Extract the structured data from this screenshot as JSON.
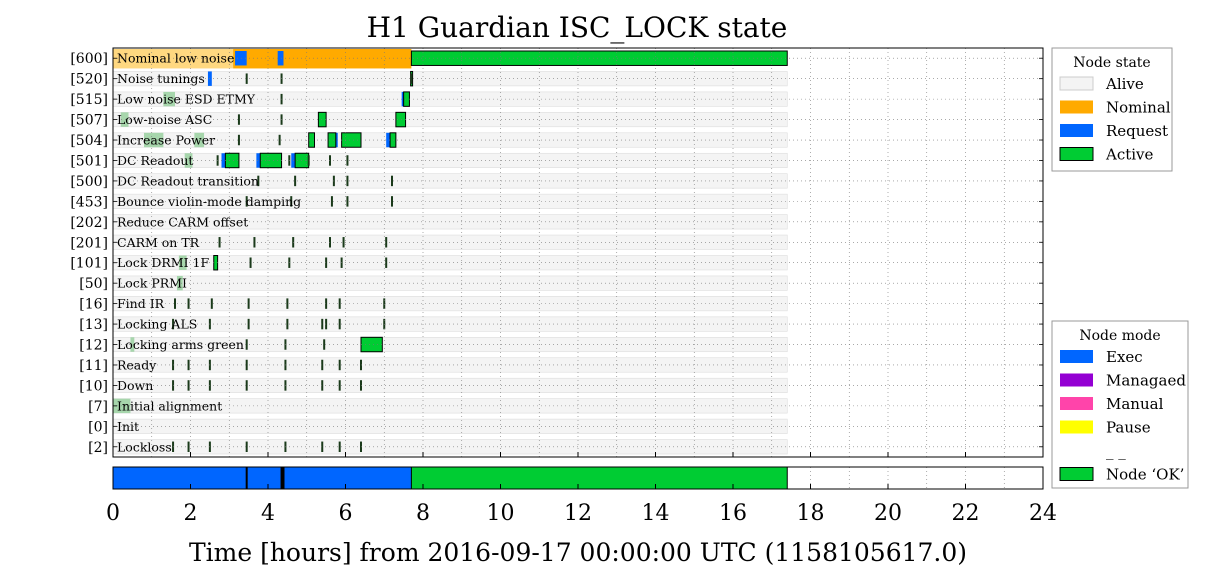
{
  "chart_data": {
    "type": "timeline",
    "title": "H1 Guardian ISC_LOCK state",
    "xlabel": "Time [hours] from 2016-09-17 00:00:00 UTC (1158105617.0)",
    "xlim": [
      0,
      24
    ],
    "x_ticks": [
      "0",
      "2",
      "4",
      "6",
      "8",
      "10",
      "12",
      "14",
      "16",
      "18",
      "20",
      "22",
      "24"
    ],
    "data_end_hours": 17.4,
    "states": [
      {
        "code": "[600]",
        "name": "Nominal low noise"
      },
      {
        "code": "[520]",
        "name": "Noise tunings"
      },
      {
        "code": "[515]",
        "name": "Low noise ESD ETMY"
      },
      {
        "code": "[507]",
        "name": "Low-noise ASC"
      },
      {
        "code": "[504]",
        "name": "Increase Power"
      },
      {
        "code": "[501]",
        "name": "DC Readout"
      },
      {
        "code": "[500]",
        "name": "DC Readout transition"
      },
      {
        "code": "[453]",
        "name": "Bounce violin-mode damping"
      },
      {
        "code": "[202]",
        "name": "Reduce CARM offset"
      },
      {
        "code": "[201]",
        "name": "CARM on TR"
      },
      {
        "code": "[101]",
        "name": "Lock DRMI 1F"
      },
      {
        "code": "[50]",
        "name": "Lock PRMI"
      },
      {
        "code": "[16]",
        "name": "Find IR"
      },
      {
        "code": "[13]",
        "name": "Locking ALS"
      },
      {
        "code": "[12]",
        "name": "Locking arms green"
      },
      {
        "code": "[11]",
        "name": "Ready"
      },
      {
        "code": "[10]",
        "name": "Down"
      },
      {
        "code": "[7]",
        "name": "Initial alignment"
      },
      {
        "code": "[0]",
        "name": "Init"
      },
      {
        "code": "[2]",
        "name": "Lockloss"
      }
    ],
    "nominal_band": [
      {
        "start": 0,
        "end": 3.1,
        "style": "light"
      },
      {
        "start": 3.1,
        "end": 7.7,
        "style": "full"
      }
    ],
    "request_segments": [
      {
        "state": "[600]",
        "start": 3.15,
        "end": 3.45
      },
      {
        "state": "[600]",
        "start": 4.25,
        "end": 4.4
      },
      {
        "state": "[520]",
        "start": 2.45,
        "end": 2.55
      },
      {
        "state": "[515]",
        "start": 7.45,
        "end": 7.6
      },
      {
        "state": "[504]",
        "start": 7.05,
        "end": 7.25
      },
      {
        "state": "[504]",
        "start": 5.65,
        "end": 5.8
      },
      {
        "state": "[501]",
        "start": 2.8,
        "end": 3.15
      },
      {
        "state": "[501]",
        "start": 3.7,
        "end": 4.2
      },
      {
        "state": "[501]",
        "start": 4.6,
        "end": 5.0
      }
    ],
    "active_segments": [
      {
        "state": "[600]",
        "start": 7.7,
        "end": 17.4
      },
      {
        "state": "[520]",
        "start": 7.68,
        "end": 7.72
      },
      {
        "state": "[515]",
        "start": 7.5,
        "end": 7.65
      },
      {
        "state": "[507]",
        "start": 5.3,
        "end": 5.5
      },
      {
        "state": "[507]",
        "start": 7.3,
        "end": 7.55
      },
      {
        "state": "[504]",
        "start": 5.05,
        "end": 5.2
      },
      {
        "state": "[504]",
        "start": 5.55,
        "end": 5.75
      },
      {
        "state": "[504]",
        "start": 5.9,
        "end": 6.4
      },
      {
        "state": "[504]",
        "start": 7.15,
        "end": 7.3
      },
      {
        "state": "[501]",
        "start": 2.9,
        "end": 3.25
      },
      {
        "state": "[501]",
        "start": 3.8,
        "end": 4.35
      },
      {
        "state": "[501]",
        "start": 4.7,
        "end": 5.05
      },
      {
        "state": "[12]",
        "start": 6.4,
        "end": 6.95
      },
      {
        "state": "[101]",
        "start": 2.6,
        "end": 2.7
      }
    ],
    "alive_segments": [
      {
        "state": "[507]",
        "start": 0.2,
        "end": 0.4
      },
      {
        "state": "[504]",
        "start": 0.8,
        "end": 1.3
      },
      {
        "state": "[504]",
        "start": 2.1,
        "end": 2.35
      },
      {
        "state": "[515]",
        "start": 1.3,
        "end": 1.6
      },
      {
        "state": "[501]",
        "start": 1.85,
        "end": 2.05
      },
      {
        "state": "[7]",
        "start": 0.0,
        "end": 0.45
      },
      {
        "state": "[12]",
        "start": 0.45,
        "end": 0.55
      },
      {
        "state": "[50]",
        "start": 1.65,
        "end": 1.8
      },
      {
        "state": "[101]",
        "start": 1.7,
        "end": 1.9
      }
    ],
    "ticks": [
      {
        "state": "[520]",
        "x": [
          3.45,
          4.35,
          7.7
        ]
      },
      {
        "state": "[515]",
        "x": [
          4.35
        ]
      },
      {
        "state": "[507]",
        "x": [
          3.25,
          4.35
        ]
      },
      {
        "state": "[504]",
        "x": [
          3.25,
          4.3
        ]
      },
      {
        "state": "[501]",
        "x": [
          2.7,
          4.55,
          5.05,
          5.6,
          6.05
        ]
      },
      {
        "state": "[500]",
        "x": [
          3.75,
          4.7,
          5.7,
          6.05,
          7.2
        ]
      },
      {
        "state": "[453]",
        "x": [
          3.45,
          4.6,
          5.65,
          6.05,
          7.2
        ]
      },
      {
        "state": "[201]",
        "x": [
          2.75,
          3.65,
          4.65,
          5.6,
          5.95,
          7.05
        ]
      },
      {
        "state": "[101]",
        "x": [
          3.55,
          4.55,
          5.5,
          5.9,
          7.05
        ]
      },
      {
        "state": "[16]",
        "x": [
          1.6,
          1.95,
          2.55,
          3.5,
          4.5,
          5.5,
          5.85,
          7.0
        ]
      },
      {
        "state": "[13]",
        "x": [
          1.55,
          2.5,
          3.5,
          4.5,
          5.4,
          5.5,
          5.85,
          7.0
        ]
      },
      {
        "state": "[12]",
        "x": [
          3.45,
          4.45,
          5.45
        ]
      },
      {
        "state": "[11]",
        "x": [
          1.55,
          1.95,
          2.5,
          3.45,
          4.45,
          5.4,
          5.85,
          6.4
        ]
      },
      {
        "state": "[10]",
        "x": [
          1.55,
          1.95,
          2.5,
          3.45,
          4.45,
          5.4,
          5.85,
          6.4
        ]
      },
      {
        "state": "[2]",
        "x": [
          1.55,
          1.95,
          2.5,
          3.45,
          4.45,
          5.4,
          5.85,
          6.4
        ]
      }
    ],
    "mode_bar": [
      {
        "start": 0,
        "end": 7.7,
        "mode": "Exec"
      },
      {
        "start": 7.7,
        "end": 17.4,
        "mode": "Node OK"
      }
    ],
    "mode_bar_ticks": [
      3.45,
      4.35,
      4.4
    ],
    "colors": {
      "alive": "#f4f4f4",
      "alive_light": "#9fd3a4",
      "nominal": "#ffaa00",
      "nominal_light": "#ffd880",
      "request": "#0066ff",
      "request_light": "#9dbdf3",
      "active": "#00cc33",
      "exec": "#0066ff",
      "managed": "#9400d3",
      "manual": "#ff44aa",
      "pause": "#ffff00",
      "node_ok": "#00cc33"
    },
    "legend_state": {
      "title": "Node state",
      "items": [
        {
          "label": "Alive",
          "color": "#f4f4f4"
        },
        {
          "label": "Nominal",
          "color": "#ffaa00"
        },
        {
          "label": "Request",
          "color": "#0066ff"
        },
        {
          "label": "Active",
          "color": "#00cc33"
        }
      ]
    },
    "legend_mode": {
      "title": "Node mode",
      "items": [
        {
          "label": "Exec",
          "color": "#0066ff"
        },
        {
          "label": "Managaed",
          "color": "#9400d3"
        },
        {
          "label": "Manual",
          "color": "#ff44aa"
        },
        {
          "label": "Pause",
          "color": "#ffff00"
        },
        {
          "label": "_ _",
          "color": ""
        },
        {
          "label": "Node ‘OK’",
          "color": "#00cc33"
        }
      ]
    }
  }
}
